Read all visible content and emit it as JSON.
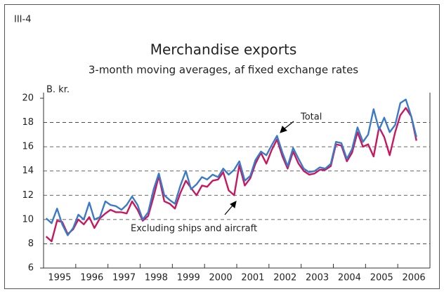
{
  "chart_data": {
    "type": "line",
    "panel_label": "III-4",
    "title": "Merchandise exports",
    "subtitle": "3-month moving averages, af fixed exchange rates",
    "y_label": "B. kr.",
    "x": [
      1995.08,
      1995.25,
      1995.42,
      1995.58,
      1995.75,
      1995.92,
      1996.08,
      1996.25,
      1996.42,
      1996.58,
      1996.75,
      1996.92,
      1997.08,
      1997.25,
      1997.42,
      1997.58,
      1997.75,
      1997.92,
      1998.08,
      1998.25,
      1998.42,
      1998.58,
      1998.75,
      1998.92,
      1999.08,
      1999.25,
      1999.42,
      1999.58,
      1999.75,
      1999.92,
      2000.08,
      2000.25,
      2000.42,
      2000.58,
      2000.75,
      2000.92,
      2001.08,
      2001.25,
      2001.42,
      2001.58,
      2001.75,
      2001.92,
      2002.08,
      2002.25,
      2002.42,
      2002.58,
      2002.75,
      2002.92,
      2003.08,
      2003.25,
      2003.42,
      2003.58,
      2003.75,
      2003.92,
      2004.08,
      2004.25,
      2004.42,
      2004.58,
      2004.75,
      2004.92,
      2005.08,
      2005.25,
      2005.42,
      2005.58,
      2005.75,
      2005.92,
      2006.08,
      2006.25,
      2006.42,
      2006.58
    ],
    "series": [
      {
        "name": "Excluding ships and aircraft",
        "color": "#c8175e",
        "values": [
          8.6,
          8.2,
          9.9,
          9.8,
          8.8,
          9.2,
          10.0,
          9.6,
          10.2,
          9.3,
          10.1,
          10.5,
          10.8,
          10.6,
          10.6,
          10.5,
          11.5,
          10.8,
          9.9,
          10.3,
          11.9,
          13.6,
          11.5,
          11.3,
          10.9,
          12.2,
          13.2,
          12.6,
          12.0,
          12.8,
          12.7,
          13.2,
          13.3,
          13.9,
          12.4,
          12.0,
          14.5,
          12.8,
          13.4,
          14.6,
          15.5,
          14.6,
          15.7,
          16.6,
          15.2,
          14.2,
          15.6,
          14.6,
          14.0,
          13.7,
          13.8,
          14.1,
          14.1,
          14.4,
          16.2,
          16.1,
          14.8,
          15.5,
          17.2,
          16.0,
          16.2,
          15.2,
          17.6,
          16.8,
          15.3,
          17.2,
          18.6,
          19.2,
          18.5,
          16.5
        ]
      },
      {
        "name": "Total",
        "color": "#3a7bc8",
        "values": [
          10.1,
          9.7,
          10.9,
          9.6,
          8.7,
          9.3,
          10.4,
          10.0,
          11.4,
          10.0,
          10.2,
          11.5,
          11.2,
          11.1,
          10.8,
          11.2,
          11.9,
          11.2,
          10.0,
          10.6,
          12.5,
          13.8,
          12.0,
          11.6,
          11.3,
          12.8,
          14.0,
          12.5,
          12.9,
          13.5,
          13.3,
          13.7,
          13.5,
          14.2,
          13.7,
          14.1,
          14.8,
          13.2,
          13.6,
          14.9,
          15.6,
          15.3,
          16.1,
          16.9,
          15.5,
          14.4,
          15.9,
          15.0,
          14.2,
          13.9,
          14.0,
          14.3,
          14.2,
          14.6,
          16.4,
          16.3,
          15.0,
          15.8,
          17.6,
          16.4,
          17.0,
          19.1,
          17.4,
          18.4,
          17.2,
          17.8,
          19.6,
          19.9,
          18.5,
          16.8
        ]
      }
    ],
    "xlim": [
      1995,
      2007
    ],
    "xticks": [
      1995,
      1996,
      1997,
      1998,
      1999,
      2000,
      2001,
      2002,
      2003,
      2004,
      2005,
      2006,
      2007
    ],
    "x_labels": [
      "1995",
      "1996",
      "1997",
      "1998",
      "1999",
      "2000",
      "2001",
      "2002",
      "2003",
      "2004",
      "2005",
      "2006"
    ],
    "ylim": [
      6,
      20
    ],
    "yticks": [
      6,
      8,
      10,
      12,
      14,
      16,
      18,
      20
    ],
    "grid": true
  }
}
